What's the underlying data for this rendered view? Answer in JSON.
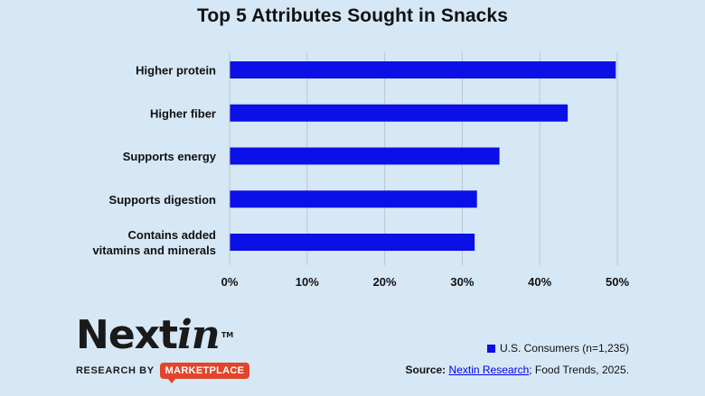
{
  "chart_data": {
    "type": "bar",
    "orientation": "horizontal",
    "title": "Top 5 Attributes Sought in Snacks",
    "categories": [
      [
        "Higher protein"
      ],
      [
        "Higher fiber"
      ],
      [
        "Supports energy"
      ],
      [
        "Supports digestion"
      ],
      [
        "Contains added",
        "vitamins and minerals"
      ]
    ],
    "series": [
      {
        "name": "U.S. Consumers (n=1,235)",
        "color": "#0a10e6",
        "values": [
          49.8,
          43.6,
          34.8,
          31.9,
          31.6
        ]
      }
    ],
    "xlim": [
      0,
      50
    ],
    "x_ticks": [
      0,
      10,
      20,
      30,
      40,
      50
    ],
    "tick_format": "percent",
    "grid": true,
    "legend_position": "bottom-right"
  },
  "logo": {
    "word_main": "Next",
    "word_italic": "in",
    "trademark": "TM",
    "research_by": "RESEARCH BY",
    "badge": "MARKETPLACE"
  },
  "legend": {
    "label": "U.S. Consumers (n=1,235)"
  },
  "source": {
    "prefix": "Source:",
    "link_text": "Nextin Research",
    "suffix": "; Food Trends, 2025."
  }
}
